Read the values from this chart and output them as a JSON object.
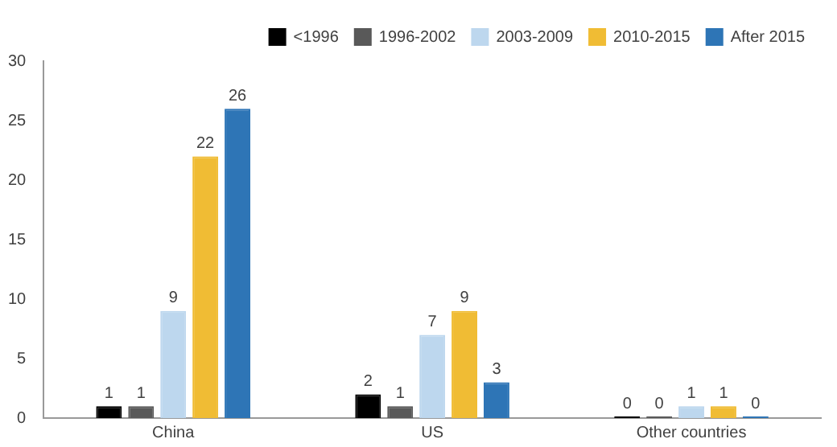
{
  "chart_data": {
    "type": "bar",
    "categories": [
      "China",
      "US",
      "Other countries"
    ],
    "series": [
      {
        "name": "<1996",
        "color": "#000000",
        "values": [
          1,
          2,
          0
        ]
      },
      {
        "name": "1996-2002",
        "color": "#595959",
        "values": [
          1,
          1,
          0
        ]
      },
      {
        "name": "2003-2009",
        "color": "#bdd7ee",
        "values": [
          9,
          7,
          1
        ]
      },
      {
        "name": "2010-2015",
        "color": "#f0bc34",
        "values": [
          22,
          9,
          1
        ]
      },
      {
        "name": "After 2015",
        "color": "#2e75b6",
        "values": [
          26,
          3,
          0
        ]
      }
    ],
    "ylim": [
      0,
      30
    ],
    "yticks": [
      0,
      5,
      10,
      15,
      20,
      25,
      30
    ],
    "grid": false,
    "legend": "top right",
    "data_labels": true
  }
}
